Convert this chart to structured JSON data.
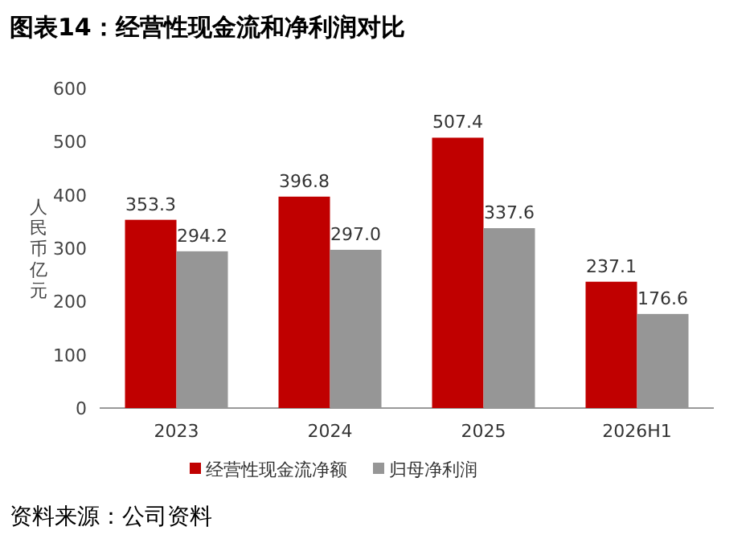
{
  "chart_data": {
    "type": "bar",
    "title": "图表14：经营性现金流和净利润对比",
    "ylabel": "人民币亿元",
    "categories": [
      "2023",
      "2024",
      "2025",
      "2026H1"
    ],
    "series": [
      {
        "name": "经营性现金流净额",
        "color": "#c00000",
        "values": [
          353.3,
          396.8,
          507.4,
          237.1
        ],
        "value_labels": [
          "353.3",
          "396.8",
          "507.4",
          "237.1"
        ]
      },
      {
        "name": "归母净利润",
        "color": "#969696",
        "values": [
          294.2,
          297.0,
          337.6,
          176.6
        ],
        "value_labels": [
          "294.2",
          "297.0",
          "337.6",
          "176.6"
        ]
      }
    ],
    "ylim": [
      0,
      600
    ],
    "yticks": [
      0,
      100,
      200,
      300,
      400,
      500,
      600
    ],
    "grid": false,
    "legend": "bottom",
    "annotations": [
      "资料来源：公司资料"
    ]
  }
}
